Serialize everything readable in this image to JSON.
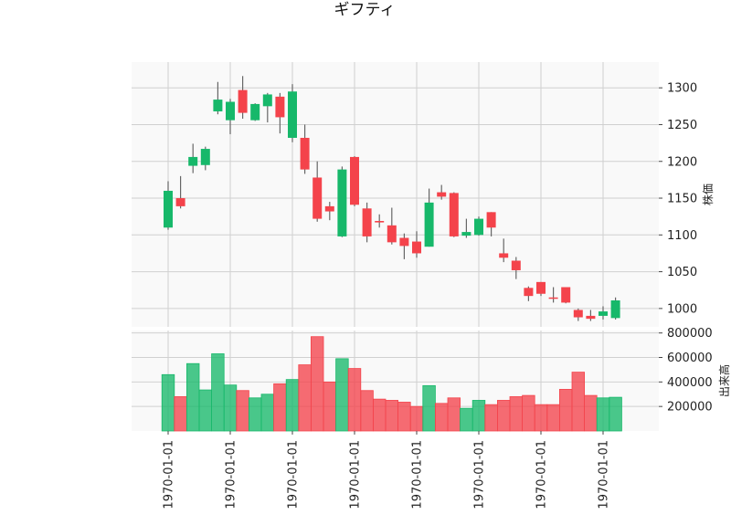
{
  "chart_data": {
    "type": "candlestick",
    "title": "ギフティ",
    "grid": true,
    "up_color": "#17b86a",
    "down_color": "#f4434b",
    "panel_background": "#f9f9f9",
    "grid_color": "#d0d0d0",
    "price_panel": {
      "ylabel": "株価",
      "ylim": [
        975,
        1335
      ],
      "yticks": [
        1000,
        1050,
        1100,
        1150,
        1200,
        1250,
        1300
      ],
      "ytick_labels": [
        "1000",
        "1050",
        "1100",
        "1150",
        "1200",
        "1250",
        "1300"
      ]
    },
    "volume_panel": {
      "ylabel": "出来高",
      "ylim": [
        0,
        820000
      ],
      "yticks": [
        200000,
        400000,
        600000,
        800000
      ],
      "ytick_labels": [
        "200000",
        "400000",
        "600000",
        "800000"
      ]
    },
    "x_tick_labels": [
      "1970-01-01",
      "1970-01-01",
      "1970-01-01",
      "1970-01-01",
      "1970-01-01",
      "1970-01-01",
      "1970-01-01",
      "1970-01-01"
    ],
    "candles": [
      {
        "open": 1110,
        "high": 1173,
        "low": 1107,
        "close": 1160,
        "volume": 460000
      },
      {
        "open": 1150,
        "high": 1180,
        "low": 1136,
        "close": 1139,
        "volume": 280000
      },
      {
        "open": 1194,
        "high": 1224,
        "low": 1184,
        "close": 1206,
        "volume": 550000
      },
      {
        "open": 1195,
        "high": 1220,
        "low": 1188,
        "close": 1217,
        "volume": 335000
      },
      {
        "open": 1268,
        "high": 1308,
        "low": 1264,
        "close": 1284,
        "volume": 630000
      },
      {
        "open": 1256,
        "high": 1285,
        "low": 1237,
        "close": 1281,
        "volume": 375000
      },
      {
        "open": 1297,
        "high": 1316,
        "low": 1258,
        "close": 1266,
        "volume": 330000
      },
      {
        "open": 1256,
        "high": 1279,
        "low": 1255,
        "close": 1278,
        "volume": 270000
      },
      {
        "open": 1275,
        "high": 1293,
        "low": 1253,
        "close": 1291,
        "volume": 300000
      },
      {
        "open": 1288,
        "high": 1293,
        "low": 1238,
        "close": 1260,
        "volume": 385000
      },
      {
        "open": 1232,
        "high": 1305,
        "low": 1226,
        "close": 1295,
        "volume": 420000
      },
      {
        "open": 1232,
        "high": 1250,
        "low": 1183,
        "close": 1189,
        "volume": 540000
      },
      {
        "open": 1178,
        "high": 1200,
        "low": 1118,
        "close": 1122,
        "volume": 770000
      },
      {
        "open": 1139,
        "high": 1145,
        "low": 1120,
        "close": 1132,
        "volume": 400000
      },
      {
        "open": 1098,
        "high": 1193,
        "low": 1097,
        "close": 1189,
        "volume": 590000
      },
      {
        "open": 1206,
        "high": 1207,
        "low": 1139,
        "close": 1141,
        "volume": 510000
      },
      {
        "open": 1136,
        "high": 1144,
        "low": 1090,
        "close": 1098,
        "volume": 330000
      },
      {
        "open": 1119,
        "high": 1128,
        "low": 1110,
        "close": 1117,
        "volume": 260000
      },
      {
        "open": 1113,
        "high": 1137,
        "low": 1087,
        "close": 1090,
        "volume": 250000
      },
      {
        "open": 1096,
        "high": 1102,
        "low": 1067,
        "close": 1085,
        "volume": 235000
      },
      {
        "open": 1091,
        "high": 1105,
        "low": 1069,
        "close": 1075,
        "volume": 200000
      },
      {
        "open": 1084,
        "high": 1163,
        "low": 1084,
        "close": 1144,
        "volume": 370000
      },
      {
        "open": 1158,
        "high": 1168,
        "low": 1148,
        "close": 1152,
        "volume": 225000
      },
      {
        "open": 1157,
        "high": 1158,
        "low": 1097,
        "close": 1098,
        "volume": 270000
      },
      {
        "open": 1099,
        "high": 1122,
        "low": 1096,
        "close": 1104,
        "volume": 185000
      },
      {
        "open": 1100,
        "high": 1125,
        "low": 1099,
        "close": 1122,
        "volume": 250000
      },
      {
        "open": 1131,
        "high": 1131,
        "low": 1098,
        "close": 1110,
        "volume": 215000
      },
      {
        "open": 1075,
        "high": 1095,
        "low": 1063,
        "close": 1069,
        "volume": 250000
      },
      {
        "open": 1065,
        "high": 1070,
        "low": 1040,
        "close": 1052,
        "volume": 280000
      },
      {
        "open": 1028,
        "high": 1030,
        "low": 1010,
        "close": 1017,
        "volume": 290000
      },
      {
        "open": 1036,
        "high": 1036,
        "low": 1017,
        "close": 1020,
        "volume": 215000
      },
      {
        "open": 1015,
        "high": 1029,
        "low": 1008,
        "close": 1014,
        "volume": 215000
      },
      {
        "open": 1029,
        "high": 1029,
        "low": 1007,
        "close": 1008,
        "volume": 340000
      },
      {
        "open": 998,
        "high": 1000,
        "low": 983,
        "close": 988,
        "volume": 480000
      },
      {
        "open": 990,
        "high": 998,
        "low": 983,
        "close": 986,
        "volume": 290000
      },
      {
        "open": 990,
        "high": 1003,
        "low": 985,
        "close": 996,
        "volume": 270000
      },
      {
        "open": 987,
        "high": 1015,
        "low": 985,
        "close": 1011,
        "volume": 275000
      }
    ]
  }
}
